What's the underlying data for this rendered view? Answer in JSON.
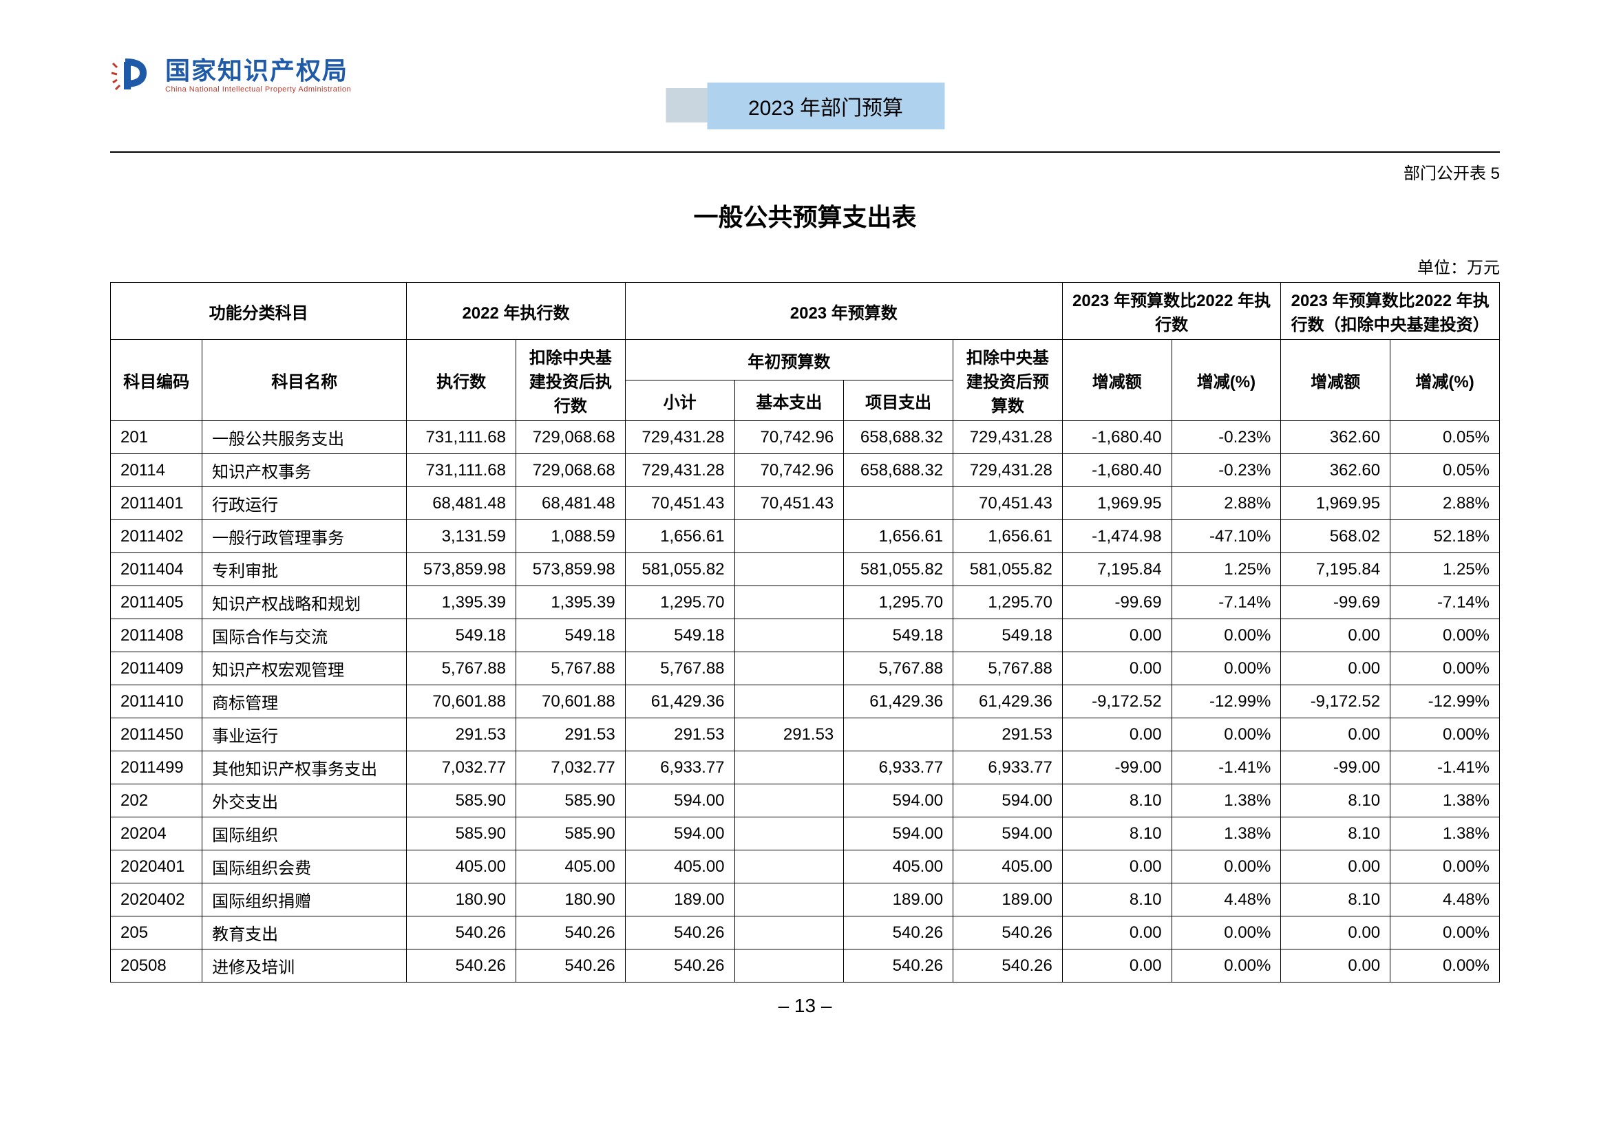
{
  "logo": {
    "cn": "国家知识产权局",
    "en": "China National Intellectual Property Administration"
  },
  "banner": "2023 年部门预算",
  "table_label": "部门公开表 5",
  "title": "一般公共预算支出表",
  "unit": "单位：万元",
  "page_number": "– 13 –",
  "headers": {
    "h1": "功能分类科目",
    "h2": "2022 年执行数",
    "h3": "2023 年预算数",
    "h4": "2023 年预算数比2022 年执行数",
    "h5": "2023 年预算数比2022 年执行数（扣除中央基建投资）",
    "s_code": "科目编码",
    "s_name": "科目名称",
    "s_exec": "执行数",
    "s_excl": "扣除中央基建投资后执行数",
    "s_init": "年初预算数",
    "s_excl2": "扣除中央基建投资后预算数",
    "s_sub": "小计",
    "s_basic": "基本支出",
    "s_proj": "项目支出",
    "s_diff": "增减额",
    "s_pct": "增减(%)"
  },
  "rows": [
    {
      "code": "201",
      "name": "一般公共服务支出",
      "exec": "731,111.68",
      "excl": "729,068.68",
      "sub": "729,431.28",
      "basic": "70,742.96",
      "proj": "658,688.32",
      "excl2": "729,431.28",
      "d1": "-1,680.40",
      "p1": "-0.23%",
      "d2": "362.60",
      "p2": "0.05%"
    },
    {
      "code": "20114",
      "name": "知识产权事务",
      "exec": "731,111.68",
      "excl": "729,068.68",
      "sub": "729,431.28",
      "basic": "70,742.96",
      "proj": "658,688.32",
      "excl2": "729,431.28",
      "d1": "-1,680.40",
      "p1": "-0.23%",
      "d2": "362.60",
      "p2": "0.05%"
    },
    {
      "code": "2011401",
      "name": "行政运行",
      "exec": "68,481.48",
      "excl": "68,481.48",
      "sub": "70,451.43",
      "basic": "70,451.43",
      "proj": "",
      "excl2": "70,451.43",
      "d1": "1,969.95",
      "p1": "2.88%",
      "d2": "1,969.95",
      "p2": "2.88%"
    },
    {
      "code": "2011402",
      "name": "一般行政管理事务",
      "exec": "3,131.59",
      "excl": "1,088.59",
      "sub": "1,656.61",
      "basic": "",
      "proj": "1,656.61",
      "excl2": "1,656.61",
      "d1": "-1,474.98",
      "p1": "-47.10%",
      "d2": "568.02",
      "p2": "52.18%"
    },
    {
      "code": "2011404",
      "name": "专利审批",
      "exec": "573,859.98",
      "excl": "573,859.98",
      "sub": "581,055.82",
      "basic": "",
      "proj": "581,055.82",
      "excl2": "581,055.82",
      "d1": "7,195.84",
      "p1": "1.25%",
      "d2": "7,195.84",
      "p2": "1.25%"
    },
    {
      "code": "2011405",
      "name": "知识产权战略和规划",
      "exec": "1,395.39",
      "excl": "1,395.39",
      "sub": "1,295.70",
      "basic": "",
      "proj": "1,295.70",
      "excl2": "1,295.70",
      "d1": "-99.69",
      "p1": "-7.14%",
      "d2": "-99.69",
      "p2": "-7.14%"
    },
    {
      "code": "2011408",
      "name": "国际合作与交流",
      "exec": "549.18",
      "excl": "549.18",
      "sub": "549.18",
      "basic": "",
      "proj": "549.18",
      "excl2": "549.18",
      "d1": "0.00",
      "p1": "0.00%",
      "d2": "0.00",
      "p2": "0.00%"
    },
    {
      "code": "2011409",
      "name": "知识产权宏观管理",
      "exec": "5,767.88",
      "excl": "5,767.88",
      "sub": "5,767.88",
      "basic": "",
      "proj": "5,767.88",
      "excl2": "5,767.88",
      "d1": "0.00",
      "p1": "0.00%",
      "d2": "0.00",
      "p2": "0.00%"
    },
    {
      "code": "2011410",
      "name": "商标管理",
      "exec": "70,601.88",
      "excl": "70,601.88",
      "sub": "61,429.36",
      "basic": "",
      "proj": "61,429.36",
      "excl2": "61,429.36",
      "d1": "-9,172.52",
      "p1": "-12.99%",
      "d2": "-9,172.52",
      "p2": "-12.99%"
    },
    {
      "code": "2011450",
      "name": "事业运行",
      "exec": "291.53",
      "excl": "291.53",
      "sub": "291.53",
      "basic": "291.53",
      "proj": "",
      "excl2": "291.53",
      "d1": "0.00",
      "p1": "0.00%",
      "d2": "0.00",
      "p2": "0.00%"
    },
    {
      "code": "2011499",
      "name": "其他知识产权事务支出",
      "exec": "7,032.77",
      "excl": "7,032.77",
      "sub": "6,933.77",
      "basic": "",
      "proj": "6,933.77",
      "excl2": "6,933.77",
      "d1": "-99.00",
      "p1": "-1.41%",
      "d2": "-99.00",
      "p2": "-1.41%"
    },
    {
      "code": "202",
      "name": "外交支出",
      "exec": "585.90",
      "excl": "585.90",
      "sub": "594.00",
      "basic": "",
      "proj": "594.00",
      "excl2": "594.00",
      "d1": "8.10",
      "p1": "1.38%",
      "d2": "8.10",
      "p2": "1.38%"
    },
    {
      "code": "20204",
      "name": "国际组织",
      "exec": "585.90",
      "excl": "585.90",
      "sub": "594.00",
      "basic": "",
      "proj": "594.00",
      "excl2": "594.00",
      "d1": "8.10",
      "p1": "1.38%",
      "d2": "8.10",
      "p2": "1.38%"
    },
    {
      "code": "2020401",
      "name": "国际组织会费",
      "exec": "405.00",
      "excl": "405.00",
      "sub": "405.00",
      "basic": "",
      "proj": "405.00",
      "excl2": "405.00",
      "d1": "0.00",
      "p1": "0.00%",
      "d2": "0.00",
      "p2": "0.00%"
    },
    {
      "code": "2020402",
      "name": "国际组织捐赠",
      "exec": "180.90",
      "excl": "180.90",
      "sub": "189.00",
      "basic": "",
      "proj": "189.00",
      "excl2": "189.00",
      "d1": "8.10",
      "p1": "4.48%",
      "d2": "8.10",
      "p2": "4.48%"
    },
    {
      "code": "205",
      "name": "教育支出",
      "exec": "540.26",
      "excl": "540.26",
      "sub": "540.26",
      "basic": "",
      "proj": "540.26",
      "excl2": "540.26",
      "d1": "0.00",
      "p1": "0.00%",
      "d2": "0.00",
      "p2": "0.00%"
    },
    {
      "code": "20508",
      "name": "进修及培训",
      "exec": "540.26",
      "excl": "540.26",
      "sub": "540.26",
      "basic": "",
      "proj": "540.26",
      "excl2": "540.26",
      "d1": "0.00",
      "p1": "0.00%",
      "d2": "0.00",
      "p2": "0.00%"
    }
  ]
}
